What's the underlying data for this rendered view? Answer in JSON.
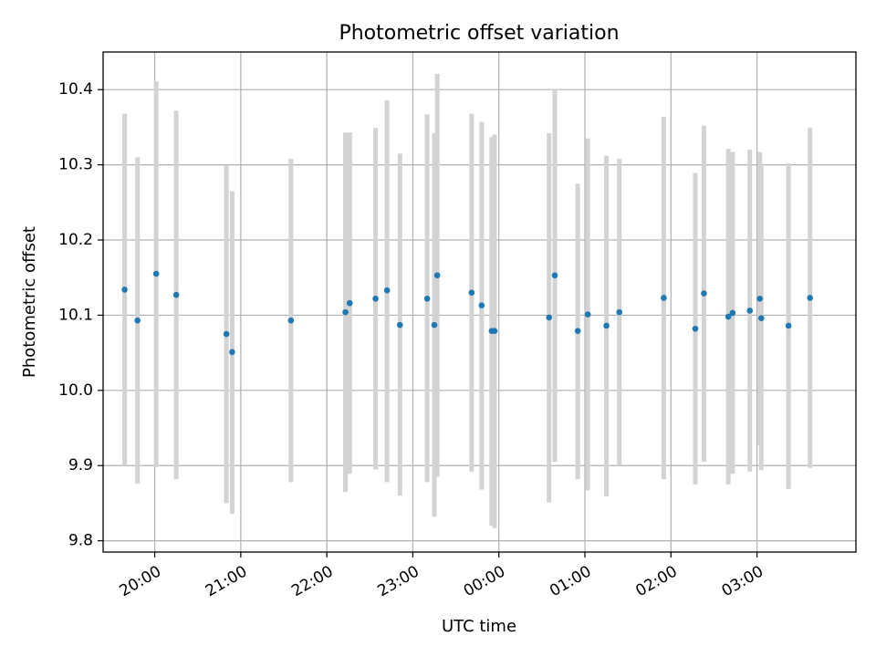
{
  "chart_data": {
    "type": "scatter",
    "title": "Photometric offset variation",
    "xlabel": "UTC time",
    "ylabel": "Photometric offset",
    "xlim": [
      "19:24",
      "04:09"
    ],
    "ylim": [
      9.785,
      10.45
    ],
    "grid": true,
    "x_ticks": [
      "20:00",
      "21:00",
      "22:00",
      "23:00",
      "00:00",
      "01:00",
      "02:00",
      "03:00"
    ],
    "y_ticks": [
      9.8,
      9.9,
      10.0,
      10.1,
      10.2,
      10.3,
      10.4
    ],
    "y_tick_labels": [
      "9.8",
      "9.9",
      "10.0",
      "10.1",
      "10.2",
      "10.3",
      "10.4"
    ],
    "colors": {
      "points": "#1f77b4",
      "errorbars": "#d3d3d3",
      "grid": "#b0b0b0"
    },
    "series": [
      {
        "marker": "point with vertical error bar",
        "points": [
          {
            "x": "19:39",
            "y": 10.134,
            "ylo": 9.9,
            "yhi": 10.368
          },
          {
            "x": "19:48",
            "y": 10.093,
            "ylo": 9.876,
            "yhi": 10.31
          },
          {
            "x": "20:01",
            "y": 10.155,
            "ylo": 9.898,
            "yhi": 10.411
          },
          {
            "x": "20:15",
            "y": 10.127,
            "ylo": 9.882,
            "yhi": 10.372
          },
          {
            "x": "20:50",
            "y": 10.075,
            "ylo": 9.85,
            "yhi": 10.3
          },
          {
            "x": "20:54",
            "y": 10.051,
            "ylo": 9.836,
            "yhi": 10.265
          },
          {
            "x": "21:35",
            "y": 10.093,
            "ylo": 9.878,
            "yhi": 10.308
          },
          {
            "x": "22:13",
            "y": 10.104,
            "ylo": 9.865,
            "yhi": 10.343
          },
          {
            "x": "22:16",
            "y": 10.116,
            "ylo": 9.889,
            "yhi": 10.343
          },
          {
            "x": "22:34",
            "y": 10.122,
            "ylo": 9.895,
            "yhi": 10.349
          },
          {
            "x": "22:42",
            "y": 10.133,
            "ylo": 9.878,
            "yhi": 10.386
          },
          {
            "x": "22:51",
            "y": 10.087,
            "ylo": 9.86,
            "yhi": 10.315
          },
          {
            "x": "23:10",
            "y": 10.122,
            "ylo": 9.878,
            "yhi": 10.367
          },
          {
            "x": "23:15",
            "y": 10.087,
            "ylo": 9.832,
            "yhi": 10.342
          },
          {
            "x": "23:17",
            "y": 10.153,
            "ylo": 9.885,
            "yhi": 10.421
          },
          {
            "x": "23:41",
            "y": 10.13,
            "ylo": 9.892,
            "yhi": 10.368
          },
          {
            "x": "23:48",
            "y": 10.113,
            "ylo": 9.868,
            "yhi": 10.357
          },
          {
            "x": "23:55",
            "y": 10.079,
            "ylo": 9.82,
            "yhi": 10.337
          },
          {
            "x": "23:57",
            "y": 10.079,
            "ylo": 9.817,
            "yhi": 10.34
          },
          {
            "x": "00:35",
            "y": 10.097,
            "ylo": 9.851,
            "yhi": 10.342
          },
          {
            "x": "00:39",
            "y": 10.153,
            "ylo": 9.905,
            "yhi": 10.401
          },
          {
            "x": "00:55",
            "y": 10.079,
            "ylo": 9.882,
            "yhi": 10.275
          },
          {
            "x": "01:02",
            "y": 10.101,
            "ylo": 9.867,
            "yhi": 10.335
          },
          {
            "x": "01:15",
            "y": 10.086,
            "ylo": 9.859,
            "yhi": 10.312
          },
          {
            "x": "01:24",
            "y": 10.104,
            "ylo": 9.9,
            "yhi": 10.308
          },
          {
            "x": "01:55",
            "y": 10.123,
            "ylo": 9.882,
            "yhi": 10.364
          },
          {
            "x": "02:17",
            "y": 10.082,
            "ylo": 9.875,
            "yhi": 10.289
          },
          {
            "x": "02:23",
            "y": 10.129,
            "ylo": 9.905,
            "yhi": 10.352
          },
          {
            "x": "02:40",
            "y": 10.098,
            "ylo": 9.875,
            "yhi": 10.321
          },
          {
            "x": "02:43",
            "y": 10.103,
            "ylo": 9.889,
            "yhi": 10.317
          },
          {
            "x": "02:55",
            "y": 10.106,
            "ylo": 9.892,
            "yhi": 10.32
          },
          {
            "x": "03:02",
            "y": 10.122,
            "ylo": 9.927,
            "yhi": 10.317
          },
          {
            "x": "03:03",
            "y": 10.096,
            "ylo": 9.894,
            "yhi": 10.298
          },
          {
            "x": "03:22",
            "y": 10.086,
            "ylo": 9.869,
            "yhi": 10.302
          },
          {
            "x": "03:37",
            "y": 10.123,
            "ylo": 9.897,
            "yhi": 10.349
          }
        ]
      }
    ]
  }
}
